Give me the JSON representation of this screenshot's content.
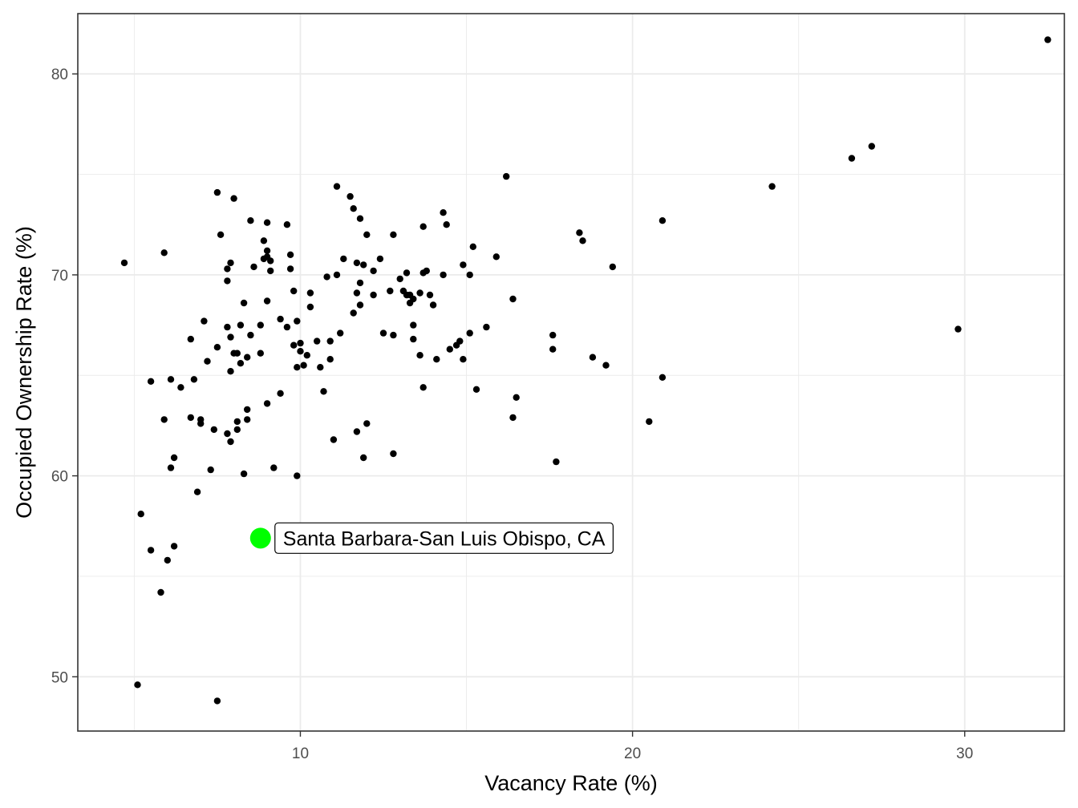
{
  "chart_data": {
    "type": "scatter",
    "title": "",
    "xlabel": "Vacancy Rate (%)",
    "ylabel": "Occupied Ownership Rate (%)",
    "xlim": [
      3.3,
      33.0
    ],
    "ylim": [
      47.3,
      83.0
    ],
    "x_ticks": [
      10,
      20,
      30
    ],
    "y_ticks": [
      50,
      60,
      70,
      80
    ],
    "x_tick_labels": [
      "10",
      "20",
      "30"
    ],
    "y_tick_labels": [
      "50",
      "60",
      "70",
      "80"
    ],
    "grid": true,
    "legend": "none",
    "colors": {
      "points": "#000000",
      "highlight": "#00ff00",
      "grid": "#ebebeb",
      "panel_border": "#333333"
    },
    "highlight": {
      "label": "Santa Barbara-San Luis Obispo, CA",
      "x": 8.8,
      "y": 56.9
    },
    "points": [
      [
        4.7,
        70.6
      ],
      [
        5.1,
        49.6
      ],
      [
        5.2,
        58.1
      ],
      [
        5.5,
        64.7
      ],
      [
        5.5,
        56.3
      ],
      [
        5.8,
        54.2
      ],
      [
        5.9,
        62.8
      ],
      [
        5.9,
        71.1
      ],
      [
        6.0,
        55.8
      ],
      [
        6.1,
        60.4
      ],
      [
        6.1,
        64.8
      ],
      [
        6.2,
        60.9
      ],
      [
        6.2,
        56.5
      ],
      [
        6.4,
        64.4
      ],
      [
        6.7,
        62.9
      ],
      [
        6.7,
        66.8
      ],
      [
        6.8,
        64.8
      ],
      [
        6.9,
        59.2
      ],
      [
        7.0,
        62.8
      ],
      [
        7.0,
        62.6
      ],
      [
        7.1,
        67.7
      ],
      [
        7.2,
        65.7
      ],
      [
        7.3,
        60.3
      ],
      [
        7.4,
        62.3
      ],
      [
        7.5,
        74.1
      ],
      [
        7.5,
        66.4
      ],
      [
        7.5,
        48.8
      ],
      [
        7.6,
        72.0
      ],
      [
        7.8,
        69.7
      ],
      [
        7.8,
        70.3
      ],
      [
        7.8,
        62.1
      ],
      [
        7.8,
        67.4
      ],
      [
        7.9,
        70.6
      ],
      [
        7.9,
        65.2
      ],
      [
        7.9,
        66.9
      ],
      [
        7.9,
        61.7
      ],
      [
        8.0,
        73.8
      ],
      [
        8.0,
        66.1
      ],
      [
        8.1,
        62.7
      ],
      [
        8.1,
        66.1
      ],
      [
        8.1,
        62.3
      ],
      [
        8.2,
        65.6
      ],
      [
        8.2,
        67.5
      ],
      [
        8.3,
        60.1
      ],
      [
        8.3,
        68.6
      ],
      [
        8.4,
        65.9
      ],
      [
        8.4,
        62.8
      ],
      [
        8.4,
        63.3
      ],
      [
        8.5,
        67.0
      ],
      [
        8.5,
        72.7
      ],
      [
        8.6,
        70.4
      ],
      [
        8.8,
        67.5
      ],
      [
        8.8,
        66.1
      ],
      [
        8.9,
        71.7
      ],
      [
        8.9,
        70.8
      ],
      [
        9.0,
        72.6
      ],
      [
        9.0,
        71.2
      ],
      [
        9.0,
        70.9
      ],
      [
        9.0,
        68.7
      ],
      [
        9.0,
        63.6
      ],
      [
        9.1,
        70.7
      ],
      [
        9.1,
        70.2
      ],
      [
        9.2,
        60.4
      ],
      [
        9.4,
        67.8
      ],
      [
        9.4,
        64.1
      ],
      [
        9.6,
        72.5
      ],
      [
        9.6,
        67.4
      ],
      [
        9.7,
        71.0
      ],
      [
        9.7,
        70.3
      ],
      [
        9.8,
        69.2
      ],
      [
        9.8,
        66.5
      ],
      [
        9.9,
        67.7
      ],
      [
        9.9,
        65.4
      ],
      [
        9.9,
        60.0
      ],
      [
        10.0,
        66.2
      ],
      [
        10.0,
        66.6
      ],
      [
        10.1,
        65.5
      ],
      [
        10.2,
        66.0
      ],
      [
        10.3,
        69.1
      ],
      [
        10.3,
        68.4
      ],
      [
        10.5,
        66.7
      ],
      [
        10.6,
        65.4
      ],
      [
        10.7,
        64.2
      ],
      [
        10.8,
        69.9
      ],
      [
        10.9,
        66.7
      ],
      [
        10.9,
        65.8
      ],
      [
        11.0,
        61.8
      ],
      [
        11.1,
        70.0
      ],
      [
        11.1,
        74.4
      ],
      [
        11.2,
        67.1
      ],
      [
        11.3,
        70.8
      ],
      [
        11.5,
        73.9
      ],
      [
        11.6,
        73.3
      ],
      [
        11.6,
        68.1
      ],
      [
        11.7,
        70.6
      ],
      [
        11.7,
        69.1
      ],
      [
        11.7,
        62.2
      ],
      [
        11.8,
        69.6
      ],
      [
        11.8,
        68.5
      ],
      [
        11.8,
        72.8
      ],
      [
        11.9,
        70.5
      ],
      [
        11.9,
        60.9
      ],
      [
        12.0,
        72.0
      ],
      [
        12.0,
        62.6
      ],
      [
        12.2,
        69.0
      ],
      [
        12.2,
        70.2
      ],
      [
        12.4,
        70.8
      ],
      [
        12.5,
        67.1
      ],
      [
        12.7,
        69.2
      ],
      [
        12.8,
        67.0
      ],
      [
        12.8,
        72.0
      ],
      [
        12.8,
        61.1
      ],
      [
        13.0,
        69.8
      ],
      [
        13.1,
        69.2
      ],
      [
        13.2,
        69.0
      ],
      [
        13.2,
        70.1
      ],
      [
        13.3,
        68.6
      ],
      [
        13.3,
        69.0
      ],
      [
        13.4,
        67.5
      ],
      [
        13.4,
        66.8
      ],
      [
        13.4,
        68.8
      ],
      [
        13.6,
        69.1
      ],
      [
        13.6,
        66.0
      ],
      [
        13.7,
        72.4
      ],
      [
        13.7,
        70.1
      ],
      [
        13.7,
        64.4
      ],
      [
        13.8,
        70.2
      ],
      [
        13.9,
        69.0
      ],
      [
        14.0,
        68.5
      ],
      [
        14.1,
        65.8
      ],
      [
        14.3,
        70.0
      ],
      [
        14.3,
        73.1
      ],
      [
        14.4,
        72.5
      ],
      [
        14.5,
        66.3
      ],
      [
        14.7,
        66.5
      ],
      [
        14.8,
        66.7
      ],
      [
        14.9,
        70.5
      ],
      [
        14.9,
        65.8
      ],
      [
        15.1,
        67.1
      ],
      [
        15.1,
        70.0
      ],
      [
        15.2,
        71.4
      ],
      [
        15.3,
        64.3
      ],
      [
        15.6,
        67.4
      ],
      [
        15.9,
        70.9
      ],
      [
        16.2,
        74.9
      ],
      [
        16.4,
        68.8
      ],
      [
        16.4,
        62.9
      ],
      [
        16.5,
        63.9
      ],
      [
        17.6,
        67.0
      ],
      [
        17.6,
        66.3
      ],
      [
        17.7,
        60.7
      ],
      [
        18.4,
        72.1
      ],
      [
        18.5,
        71.7
      ],
      [
        18.8,
        65.9
      ],
      [
        19.2,
        65.5
      ],
      [
        19.4,
        70.4
      ],
      [
        20.5,
        62.7
      ],
      [
        20.9,
        72.7
      ],
      [
        20.9,
        64.9
      ],
      [
        24.2,
        74.4
      ],
      [
        26.6,
        75.8
      ],
      [
        27.2,
        76.4
      ],
      [
        29.8,
        67.3
      ],
      [
        32.5,
        81.7
      ]
    ]
  }
}
